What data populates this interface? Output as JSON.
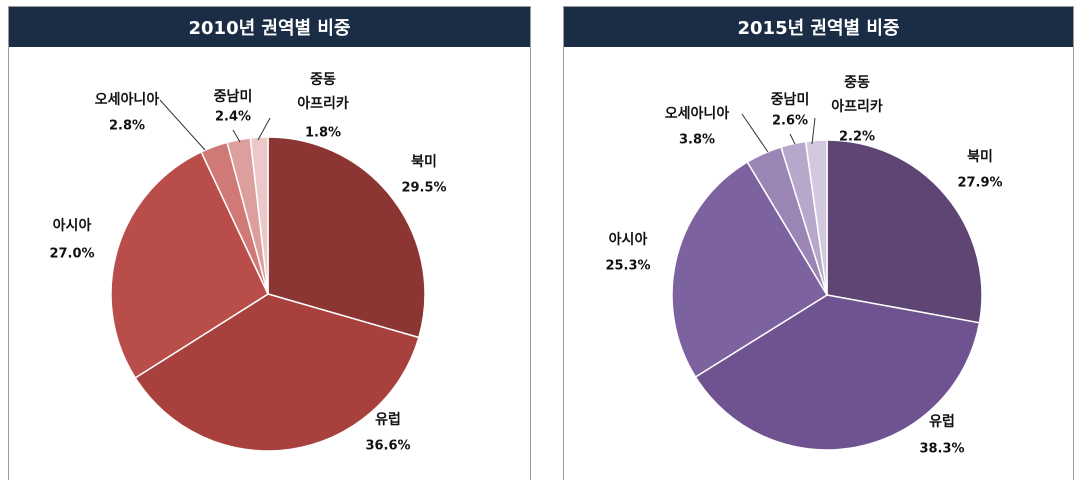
{
  "chart_data": [
    {
      "type": "pie",
      "title": "2010년 권역별 비중",
      "categories": [
        "북미",
        "유럽",
        "아시아",
        "오세아니아",
        "중남미",
        "중동\n아프리카"
      ],
      "values": [
        29.5,
        36.6,
        27.0,
        2.8,
        2.4,
        1.8
      ],
      "value_labels": [
        "29.5%",
        "36.6%",
        "27.0%",
        "2.8%",
        "2.4%",
        "1.8%"
      ],
      "colors": [
        "#8b3633",
        "#a8413d",
        "#b84d49",
        "#d07a77",
        "#dc9f9e",
        "#ecc9c9"
      ]
    },
    {
      "type": "pie",
      "title": "2015년 권역별 비중",
      "categories": [
        "북미",
        "유럽",
        "아시아",
        "오세아니아",
        "중남미",
        "중동\n아프리카"
      ],
      "values": [
        27.9,
        38.3,
        25.3,
        3.8,
        2.6,
        2.2
      ],
      "value_labels": [
        "27.9%",
        "38.3%",
        "25.3%",
        "3.8%",
        "2.6%",
        "2.2%"
      ],
      "colors": [
        "#5e4573",
        "#6e5390",
        "#7d62a0",
        "#9a85b5",
        "#b6a7cb",
        "#d2c9de"
      ]
    }
  ]
}
